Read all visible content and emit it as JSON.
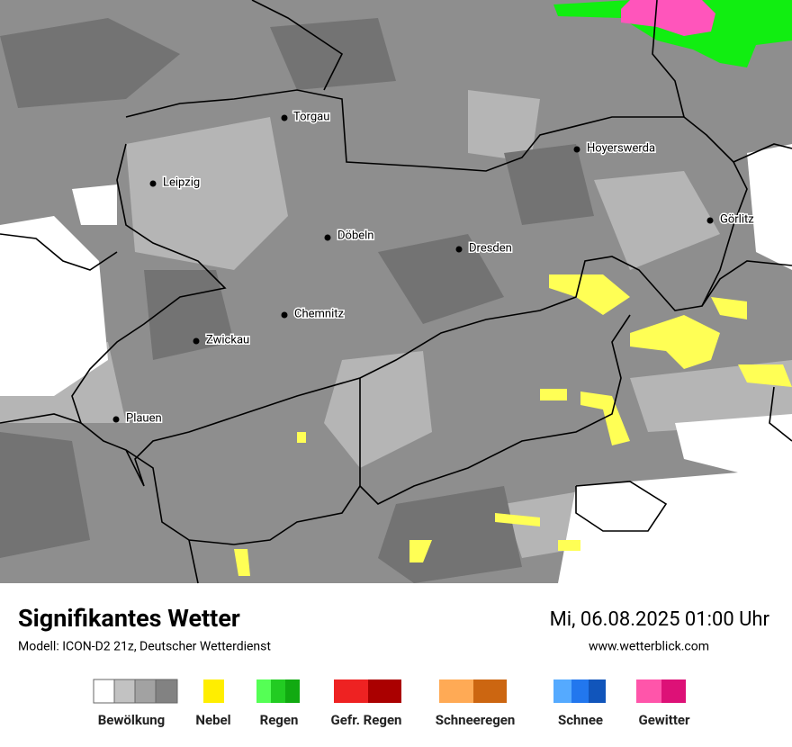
{
  "map": {
    "cities": [
      {
        "label": "Torgau"
      },
      {
        "label": "Hoyerswerda"
      },
      {
        "label": "Leipzig"
      },
      {
        "label": "Görlitz"
      },
      {
        "label": "Döbeln"
      },
      {
        "label": "Dresden"
      },
      {
        "label": "Chemnitz"
      },
      {
        "label": "Zwickau"
      },
      {
        "label": "Plauen"
      }
    ]
  },
  "footer": {
    "title": "Signifikantes Wetter",
    "subtitle": "Modell: ICON-D2 21z, Deutscher Wetterdienst",
    "date": "Mi, 06.08.2025 01:00 Uhr",
    "website": "www.wetterblick.com"
  },
  "legend": {
    "items": [
      {
        "label": "Bewölkung"
      },
      {
        "label": "Nebel"
      },
      {
        "label": "Regen"
      },
      {
        "label": "Gefr. Regen"
      },
      {
        "label": "Schneeregen"
      },
      {
        "label": "Schnee"
      },
      {
        "label": "Gewitter"
      }
    ]
  }
}
